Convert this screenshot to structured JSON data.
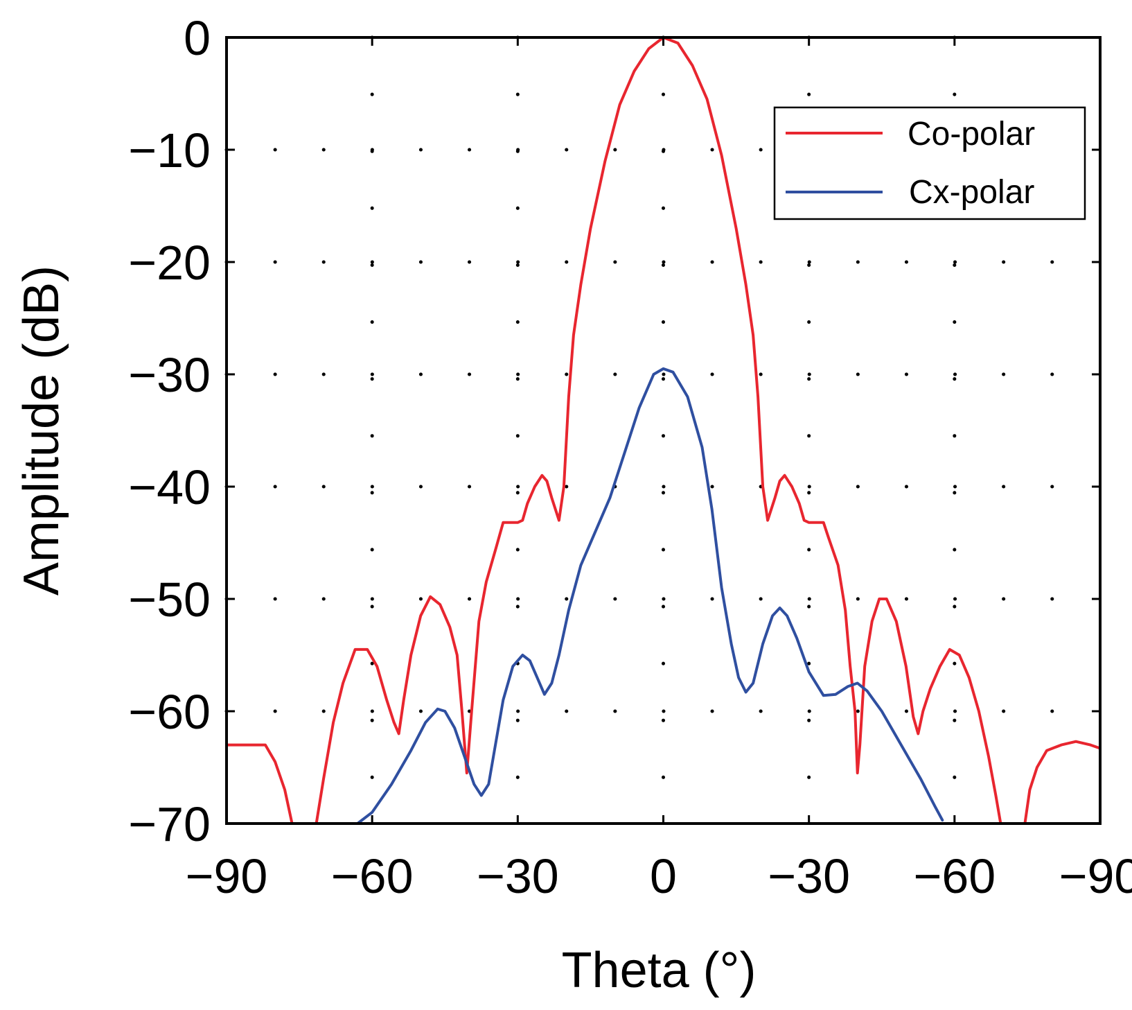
{
  "chart_data": {
    "type": "line",
    "title": "",
    "xlabel": "Theta (°)",
    "ylabel": "Amplitude (dB)",
    "xlim": [
      -90,
      90
    ],
    "ylim": [
      -70,
      0
    ],
    "grid": true,
    "grid_style": "dotted",
    "x_ticks": [
      -90,
      -60,
      -30,
      0,
      30,
      60,
      90
    ],
    "x_tick_labels": [
      "−90",
      "−60",
      "−30",
      "0",
      "−30",
      "−60",
      "−90"
    ],
    "y_ticks": [
      0,
      -10,
      -20,
      -30,
      -40,
      -50,
      -60,
      -70
    ],
    "y_tick_labels": [
      "0",
      "−10",
      "−20",
      "−30",
      "−40",
      "−50",
      "−60",
      "−70"
    ],
    "legend_position": "top-right",
    "series": [
      {
        "name": "Co-polar",
        "color": "#e8262f",
        "points": [
          [
            -90,
            -63.0
          ],
          [
            -82,
            -63.0
          ],
          [
            -80,
            -64.5
          ],
          [
            -78,
            -67.0
          ],
          [
            -76.5,
            -70.0
          ],
          [
            -71.5,
            -70.0
          ],
          [
            -70,
            -66.0
          ],
          [
            -68,
            -61.0
          ],
          [
            -66,
            -57.5
          ],
          [
            -63.5,
            -54.5
          ],
          [
            -61,
            -54.5
          ],
          [
            -59,
            -56.0
          ],
          [
            -57,
            -59.0
          ],
          [
            -55.5,
            -61.0
          ],
          [
            -54.5,
            -62.0
          ],
          [
            -53.5,
            -59.0
          ],
          [
            -52,
            -55.0
          ],
          [
            -50,
            -51.5
          ],
          [
            -48,
            -49.8
          ],
          [
            -46,
            -50.5
          ],
          [
            -44,
            -52.5
          ],
          [
            -42.5,
            -55.0
          ],
          [
            -41.5,
            -60.0
          ],
          [
            -40.5,
            -65.5
          ],
          [
            -39.5,
            -60.0
          ],
          [
            -38,
            -52.0
          ],
          [
            -36.5,
            -48.5
          ],
          [
            -34.5,
            -45.5
          ],
          [
            -33,
            -43.2
          ],
          [
            -30,
            -43.2
          ],
          [
            -29,
            -43.0
          ],
          [
            -28,
            -41.5
          ],
          [
            -26.5,
            -40.0
          ],
          [
            -25,
            -39.0
          ],
          [
            -24,
            -39.5
          ],
          [
            -23,
            -41.0
          ],
          [
            -21.5,
            -43.0
          ],
          [
            -20.5,
            -40.0
          ],
          [
            -19.5,
            -32.0
          ],
          [
            -18.5,
            -26.5
          ],
          [
            -17,
            -22.0
          ],
          [
            -15,
            -17.0
          ],
          [
            -12,
            -11.0
          ],
          [
            -9,
            -6.0
          ],
          [
            -6,
            -3.0
          ],
          [
            -3,
            -1.0
          ],
          [
            0,
            0.0
          ],
          [
            3,
            -0.5
          ],
          [
            6,
            -2.5
          ],
          [
            9,
            -5.5
          ],
          [
            12,
            -10.5
          ],
          [
            15,
            -17.0
          ],
          [
            17,
            -22.0
          ],
          [
            18.5,
            -26.5
          ],
          [
            19.5,
            -32.0
          ],
          [
            20.5,
            -40.0
          ],
          [
            21.5,
            -43.0
          ],
          [
            23,
            -41.0
          ],
          [
            24,
            -39.5
          ],
          [
            25,
            -39.0
          ],
          [
            26.5,
            -40.0
          ],
          [
            28,
            -41.5
          ],
          [
            29,
            -43.0
          ],
          [
            30,
            -43.2
          ],
          [
            33,
            -43.2
          ],
          [
            34,
            -44.5
          ],
          [
            36,
            -47.0
          ],
          [
            37.5,
            -51.0
          ],
          [
            38.5,
            -56.0
          ],
          [
            39.5,
            -60.0
          ],
          [
            40,
            -65.5
          ],
          [
            40.5,
            -63.0
          ],
          [
            41.5,
            -56.0
          ],
          [
            43,
            -52.0
          ],
          [
            44.5,
            -50.0
          ],
          [
            46,
            -50.0
          ],
          [
            48,
            -52.0
          ],
          [
            50,
            -56.0
          ],
          [
            51.5,
            -60.5
          ],
          [
            52.5,
            -62.0
          ],
          [
            53.5,
            -60.0
          ],
          [
            55,
            -58.0
          ],
          [
            57,
            -56.0
          ],
          [
            59,
            -54.5
          ],
          [
            61,
            -55.0
          ],
          [
            63,
            -57.0
          ],
          [
            65,
            -60.0
          ],
          [
            67,
            -64.0
          ],
          [
            68.5,
            -67.5
          ],
          [
            69.5,
            -70.0
          ],
          [
            74.5,
            -70.0
          ],
          [
            75.5,
            -67.0
          ],
          [
            77,
            -65.0
          ],
          [
            79,
            -63.5
          ],
          [
            82,
            -63.0
          ],
          [
            85,
            -62.7
          ],
          [
            88,
            -63.0
          ],
          [
            90,
            -63.3
          ]
        ]
      },
      {
        "name": "Cx-polar",
        "color": "#2f4fa0",
        "points": [
          [
            -63,
            -70.0
          ],
          [
            -60,
            -69.0
          ],
          [
            -56,
            -66.5
          ],
          [
            -52,
            -63.5
          ],
          [
            -49,
            -61.0
          ],
          [
            -46.5,
            -59.8
          ],
          [
            -45,
            -60.0
          ],
          [
            -43,
            -61.5
          ],
          [
            -41,
            -64.0
          ],
          [
            -39,
            -66.5
          ],
          [
            -37.5,
            -67.5
          ],
          [
            -36,
            -66.5
          ],
          [
            -35,
            -64.0
          ],
          [
            -33,
            -59.0
          ],
          [
            -31,
            -56.0
          ],
          [
            -29,
            -55.0
          ],
          [
            -27.5,
            -55.5
          ],
          [
            -26,
            -57.0
          ],
          [
            -24.5,
            -58.5
          ],
          [
            -23,
            -57.5
          ],
          [
            -21.5,
            -55.0
          ],
          [
            -19.5,
            -51.0
          ],
          [
            -17,
            -47.0
          ],
          [
            -14,
            -44.0
          ],
          [
            -11,
            -41.0
          ],
          [
            -8,
            -37.0
          ],
          [
            -5,
            -33.0
          ],
          [
            -2,
            -30.0
          ],
          [
            0,
            -29.5
          ],
          [
            2,
            -29.8
          ],
          [
            5,
            -32.0
          ],
          [
            8,
            -36.5
          ],
          [
            10,
            -42.0
          ],
          [
            12,
            -49.0
          ],
          [
            14,
            -54.0
          ],
          [
            15.5,
            -57.0
          ],
          [
            17,
            -58.3
          ],
          [
            18.5,
            -57.5
          ],
          [
            20.5,
            -54.0
          ],
          [
            22.5,
            -51.5
          ],
          [
            24,
            -50.8
          ],
          [
            25.5,
            -51.5
          ],
          [
            27.5,
            -53.5
          ],
          [
            30,
            -56.5
          ],
          [
            33,
            -58.6
          ],
          [
            35.5,
            -58.5
          ],
          [
            38,
            -57.8
          ],
          [
            40,
            -57.5
          ],
          [
            42,
            -58.2
          ],
          [
            45,
            -60.0
          ],
          [
            49,
            -63.0
          ],
          [
            53,
            -66.0
          ],
          [
            56,
            -68.5
          ],
          [
            57.5,
            -69.7
          ]
        ]
      }
    ]
  }
}
